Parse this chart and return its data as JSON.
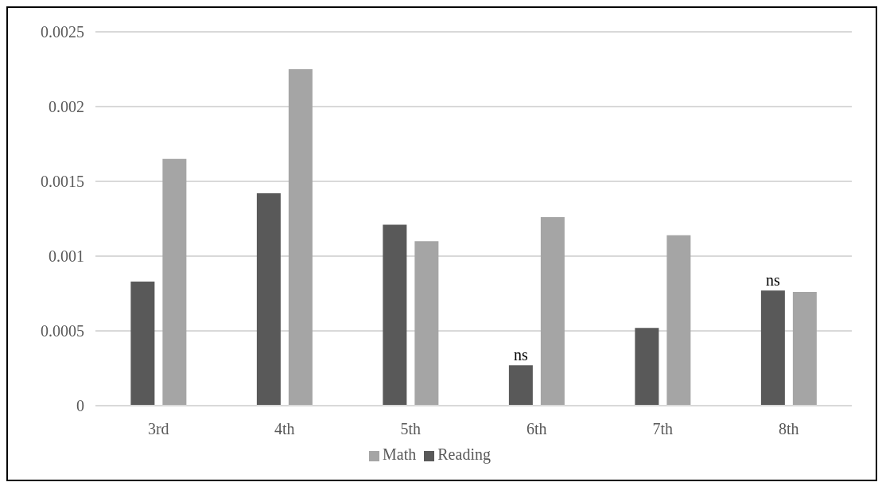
{
  "chart_data": {
    "type": "bar",
    "categories": [
      "3rd",
      "4th",
      "5th",
      "6th",
      "7th",
      "8th"
    ],
    "series": [
      {
        "name": "Reading",
        "color": "#595959",
        "values": [
          0.00083,
          0.00142,
          0.00121,
          0.00027,
          0.00052,
          0.00077
        ]
      },
      {
        "name": "Math",
        "color": "#a5a5a5",
        "values": [
          0.00165,
          0.00225,
          0.0011,
          0.00126,
          0.00114,
          0.00076
        ]
      }
    ],
    "ylim": [
      0,
      0.0025
    ],
    "yticks": [
      0,
      0.0005,
      0.001,
      0.0015,
      0.002,
      0.0025
    ],
    "grid": "y",
    "legend": "bottom",
    "annotations": [
      {
        "text": "ns",
        "x": "6th",
        "y": 0.00027
      },
      {
        "text": "ns",
        "x": "8th",
        "y": 0.00077
      }
    ]
  }
}
